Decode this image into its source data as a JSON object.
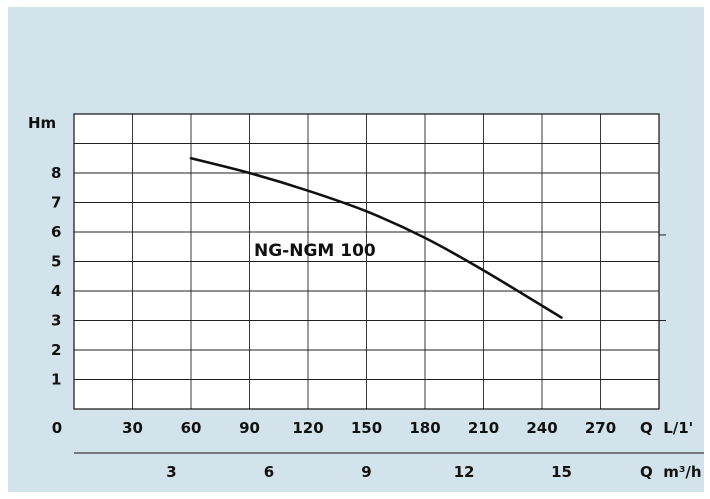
{
  "chart_data": {
    "type": "line",
    "title": "",
    "ylabel": "Hm",
    "xlabel_primary": "Q  L/1'",
    "xlabel_secondary": "Q  m³/h",
    "ylim": [
      0,
      10
    ],
    "xlim_lpm": [
      0,
      300
    ],
    "y_ticks": [
      1,
      2,
      3,
      4,
      5,
      6,
      7,
      8
    ],
    "x_ticks_lpm": [
      0,
      30,
      60,
      90,
      120,
      150,
      180,
      210,
      240,
      270
    ],
    "x_ticks_m3h": [
      3,
      6,
      9,
      12,
      15
    ],
    "grid": true,
    "series": [
      {
        "name": "NG-NGM 100",
        "x": [
          60,
          90,
          120,
          150,
          180,
          210,
          250
        ],
        "y": [
          8.5,
          8.0,
          7.4,
          6.7,
          5.8,
          4.7,
          3.1
        ]
      }
    ]
  },
  "colors": {
    "background": "#d3e3ec",
    "plot": "#ffffff",
    "line": "#111111"
  }
}
